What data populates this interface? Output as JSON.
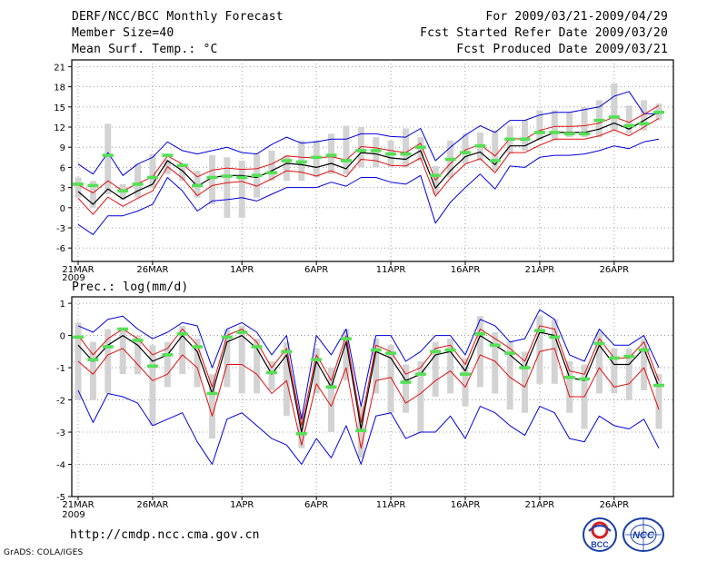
{
  "header": {
    "title": "DERF/NCC/BCC Monthly Forecast",
    "member_size": "Member Size=40",
    "variable": "Mean Surf. Temp.: °C",
    "period": "For 2009/03/21-2009/04/29",
    "started": "Fcst Started Refer Date 2009/03/20",
    "produced": "Fcst Produced Date 2009/03/21"
  },
  "footer": {
    "url": "http://cmdp.ncc.cma.gov.cn",
    "grads": "GrADS: COLA/IGES",
    "logo_bcc": "BCC",
    "logo_ncc": "NCC"
  },
  "colors": {
    "box": "#d3d3d3",
    "median": "#55e055",
    "mean": "#000000",
    "inner": "#e01010",
    "outer": "#0000dd"
  },
  "chart_data": [
    {
      "type": "line",
      "title": "Mean Surf. Temp.: °C",
      "ylim": [
        -8,
        22
      ],
      "yticks": [
        -6,
        -3,
        0,
        3,
        6,
        9,
        12,
        15,
        18,
        21
      ],
      "xtick_days": [
        1,
        6,
        12,
        17,
        22,
        27,
        32,
        37
      ],
      "xtick_labels": [
        "21MAR",
        "26MAR",
        "1APR",
        "6APR",
        "11APR",
        "16APR",
        "21APR",
        "26APR"
      ],
      "xyear_label": "2009",
      "days": 40,
      "series": [
        {
          "name": "mean",
          "values": [
            2.4,
            0.5,
            2.8,
            1.3,
            2.5,
            3.5,
            7.0,
            5.5,
            3.2,
            4.5,
            4.8,
            4.8,
            4.5,
            5.5,
            6.6,
            6.4,
            6.0,
            6.6,
            5.8,
            8.2,
            8.0,
            7.4,
            7.2,
            8.5,
            2.9,
            5.5,
            7.6,
            8.3,
            6.4,
            9.2,
            9.2,
            10.3,
            11.2,
            11.2,
            11.2,
            11.7,
            12.6,
            11.7,
            13.0,
            14.3
          ]
        },
        {
          "name": "upper_inner",
          "values": [
            3.4,
            2.2,
            4.0,
            2.5,
            3.6,
            4.6,
            7.7,
            6.5,
            4.6,
            5.6,
            5.9,
            5.7,
            5.8,
            6.5,
            7.7,
            7.5,
            7.4,
            7.6,
            7.1,
            9.1,
            8.9,
            8.5,
            8.2,
            9.6,
            4.1,
            6.6,
            8.6,
            9.4,
            7.7,
            10.3,
            10.2,
            11.5,
            12.1,
            12.1,
            12.2,
            12.6,
            13.5,
            12.7,
            13.9,
            15.2
          ]
        },
        {
          "name": "lower_inner",
          "values": [
            1.4,
            -1.0,
            1.6,
            0.2,
            1.4,
            2.5,
            6.1,
            4.4,
            1.8,
            3.3,
            3.7,
            3.9,
            3.2,
            4.3,
            5.5,
            5.3,
            4.7,
            5.5,
            4.6,
            7.2,
            7.0,
            6.3,
            6.2,
            7.4,
            1.7,
            4.4,
            6.5,
            7.3,
            5.2,
            8.2,
            8.2,
            9.3,
            10.2,
            10.2,
            10.2,
            10.7,
            11.6,
            10.7,
            12.0,
            13.3
          ]
        },
        {
          "name": "upper_outer",
          "values": [
            6.5,
            5.0,
            8.2,
            4.8,
            6.5,
            7.5,
            9.8,
            8.5,
            8.0,
            8.5,
            9.0,
            8.2,
            8.0,
            9.4,
            10.5,
            9.6,
            9.8,
            10.2,
            10.2,
            11.0,
            11.0,
            10.6,
            10.5,
            11.8,
            7.0,
            9.0,
            10.8,
            12.2,
            11.2,
            13.0,
            13.0,
            13.8,
            14.2,
            14.2,
            14.6,
            15.0,
            16.6,
            17.3,
            14.0,
            14.0
          ]
        },
        {
          "name": "lower_outer",
          "values": [
            -2.5,
            -4.0,
            -1.2,
            -1.2,
            -0.5,
            0.5,
            4.5,
            2.5,
            -0.5,
            1.0,
            1.2,
            1.5,
            1.0,
            2.0,
            3.0,
            3.0,
            3.0,
            3.8,
            3.2,
            4.5,
            4.5,
            3.8,
            3.5,
            4.8,
            -2.3,
            0.8,
            3.0,
            5.0,
            2.8,
            6.2,
            6.0,
            7.5,
            7.8,
            7.8,
            8.0,
            8.5,
            9.2,
            8.8,
            9.8,
            10.2
          ]
        },
        {
          "name": "box_top",
          "values": [
            4.5,
            4.0,
            12.5,
            3.5,
            6.5,
            8.0,
            7.2,
            6.2,
            5.5,
            7.8,
            7.5,
            7.0,
            8.0,
            8.5,
            7.8,
            10.0,
            10.0,
            11.0,
            12.2,
            12.0,
            10.5,
            10.0,
            11.8,
            10.5,
            6.2,
            10.0,
            11.0,
            11.2,
            11.5,
            12.2,
            13.0,
            14.5,
            14.5,
            14.2,
            15.0,
            16.0,
            18.5,
            15.2,
            16.0,
            15.5
          ]
        },
        {
          "name": "box_bottom",
          "values": [
            1.5,
            0.0,
            2.0,
            1.2,
            1.5,
            3.0,
            5.0,
            4.0,
            1.5,
            0.5,
            -1.5,
            -1.5,
            1.5,
            4.0,
            4.0,
            4.0,
            4.5,
            5.0,
            5.0,
            6.0,
            6.0,
            6.0,
            6.0,
            7.0,
            2.0,
            4.5,
            6.5,
            7.0,
            5.5,
            8.0,
            8.5,
            10.0,
            10.0,
            10.5,
            10.5,
            10.5,
            11.5,
            11.0,
            11.5,
            13.0
          ]
        },
        {
          "name": "median",
          "values": [
            3.5,
            3.3,
            7.8,
            2.5,
            3.5,
            4.5,
            7.8,
            6.3,
            3.3,
            4.5,
            4.7,
            4.5,
            4.8,
            5.2,
            7.0,
            6.8,
            7.5,
            7.8,
            7.0,
            8.5,
            8.5,
            8.0,
            8.0,
            9.0,
            4.8,
            7.2,
            8.2,
            9.2,
            7.0,
            10.2,
            10.2,
            11.2,
            11.2,
            11.0,
            11.0,
            13.0,
            13.5,
            12.2,
            12.5,
            14.2
          ]
        }
      ]
    },
    {
      "type": "line",
      "title": "Prec.: log(mm/d)",
      "ylim": [
        -5,
        1.2
      ],
      "yticks": [
        -5,
        -4,
        -3,
        -2,
        -1,
        0,
        1
      ],
      "xtick_days": [
        1,
        6,
        12,
        17,
        22,
        27,
        32,
        37
      ],
      "xtick_labels": [
        "21MAR",
        "26MAR",
        "1APR",
        "6APR",
        "11APR",
        "16APR",
        "21APR",
        "26APR"
      ],
      "xyear_label": "2009",
      "days": 40,
      "series": [
        {
          "name": "mean",
          "values": [
            -0.3,
            -0.8,
            -0.3,
            0.0,
            -0.3,
            -0.8,
            -0.6,
            0.0,
            -0.5,
            -1.8,
            -0.2,
            0.0,
            -0.4,
            -1.2,
            -0.6,
            -3.0,
            -0.8,
            -1.6,
            -0.2,
            -2.9,
            -0.5,
            -0.7,
            -1.4,
            -1.2,
            -0.6,
            -0.5,
            -1.1,
            0.0,
            -0.3,
            -0.6,
            -1.0,
            0.1,
            0.0,
            -1.3,
            -1.4,
            -0.3,
            -0.9,
            -0.9,
            -0.4,
            -1.6
          ]
        },
        {
          "name": "upper_inner",
          "values": [
            0.0,
            -0.6,
            -0.1,
            0.2,
            -0.1,
            -0.6,
            -0.4,
            0.2,
            -0.3,
            -1.6,
            0.0,
            0.2,
            -0.2,
            -1.0,
            -0.4,
            -2.8,
            -0.6,
            -1.4,
            0.0,
            -2.7,
            -0.3,
            -0.5,
            -1.2,
            -1.0,
            -0.4,
            -0.3,
            -0.9,
            0.2,
            -0.1,
            -0.4,
            -0.8,
            0.3,
            0.2,
            -1.1,
            -1.2,
            -0.1,
            -0.7,
            -0.7,
            -0.2,
            -1.4
          ]
        },
        {
          "name": "lower_inner",
          "values": [
            -0.8,
            -1.2,
            -0.6,
            -0.4,
            -0.9,
            -1.4,
            -1.2,
            -0.6,
            -1.0,
            -2.5,
            -0.9,
            -0.9,
            -1.2,
            -1.8,
            -1.4,
            -3.4,
            -1.5,
            -2.2,
            -1.0,
            -3.5,
            -1.4,
            -1.3,
            -2.1,
            -1.8,
            -1.4,
            -1.1,
            -1.6,
            -0.6,
            -0.8,
            -1.3,
            -1.6,
            -0.5,
            -0.4,
            -1.9,
            -1.9,
            -1.0,
            -1.6,
            -1.5,
            -1.0,
            -2.3
          ]
        },
        {
          "name": "upper_outer",
          "values": [
            0.3,
            0.1,
            0.5,
            0.6,
            0.2,
            -0.1,
            0.1,
            0.4,
            0.3,
            -1.0,
            0.2,
            0.4,
            0.1,
            -0.6,
            0.0,
            -2.6,
            0.0,
            -0.6,
            0.2,
            -2.2,
            0.0,
            0.0,
            -0.8,
            -0.5,
            0.0,
            0.0,
            -0.6,
            0.5,
            0.3,
            -0.2,
            -0.1,
            0.8,
            0.5,
            -0.6,
            -0.8,
            0.2,
            -0.3,
            -0.3,
            0.0,
            -1.0
          ]
        },
        {
          "name": "lower_outer",
          "values": [
            -1.7,
            -2.7,
            -1.8,
            -1.9,
            -2.1,
            -2.8,
            -2.6,
            -2.4,
            -3.3,
            -4.0,
            -2.6,
            -2.4,
            -2.8,
            -3.2,
            -3.4,
            -4.0,
            -3.2,
            -3.8,
            -2.8,
            -4.0,
            -2.5,
            -2.4,
            -3.2,
            -3.0,
            -3.0,
            -2.5,
            -3.2,
            -2.2,
            -2.4,
            -2.8,
            -3.1,
            -2.2,
            -2.4,
            -3.2,
            -3.3,
            -2.5,
            -2.8,
            -2.9,
            -2.6,
            -3.5
          ]
        },
        {
          "name": "box_top",
          "values": [
            0.4,
            -0.2,
            0.2,
            0.2,
            0.0,
            -0.3,
            -0.2,
            0.3,
            -0.1,
            -1.2,
            0.2,
            0.3,
            -0.1,
            -0.8,
            -0.2,
            -2.4,
            -0.4,
            -1.0,
            0.2,
            -2.2,
            -0.1,
            -0.3,
            -0.9,
            -0.8,
            -0.2,
            -0.1,
            -0.7,
            0.6,
            0.1,
            -0.2,
            -0.5,
            0.6,
            0.5,
            -0.8,
            -0.9,
            0.1,
            -0.4,
            -0.4,
            -0.1,
            -1.2
          ]
        },
        {
          "name": "box_bottom",
          "values": [
            -2.0,
            -2.0,
            -1.8,
            -1.2,
            -1.2,
            -2.8,
            -1.6,
            -1.2,
            -1.6,
            -3.2,
            -1.6,
            -1.8,
            -1.8,
            -1.7,
            -2.5,
            -3.5,
            -1.8,
            -3.0,
            -1.4,
            -3.8,
            -1.8,
            -2.4,
            -2.4,
            -3.0,
            -1.9,
            -1.8,
            -2.2,
            -1.6,
            -1.8,
            -2.3,
            -2.4,
            -1.5,
            -1.5,
            -2.4,
            -2.9,
            -1.8,
            -1.8,
            -2.0,
            -1.7,
            -2.9
          ]
        },
        {
          "name": "median",
          "values": [
            -0.05,
            -0.75,
            -0.35,
            0.2,
            -0.15,
            -0.95,
            -0.6,
            0.05,
            -0.35,
            -1.8,
            -0.05,
            0.1,
            -0.35,
            -1.15,
            -0.5,
            -3.05,
            -0.75,
            -1.6,
            -0.1,
            -2.95,
            -0.45,
            -0.55,
            -1.45,
            -1.2,
            -0.5,
            -0.45,
            -1.2,
            0.05,
            -0.3,
            -0.55,
            -1.0,
            0.15,
            -0.05,
            -1.3,
            -1.35,
            -0.25,
            -0.7,
            -0.65,
            -0.45,
            -1.55
          ]
        }
      ]
    }
  ]
}
